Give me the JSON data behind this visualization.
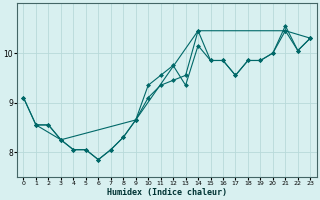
{
  "xlabel": "Humidex (Indice chaleur)",
  "bg_color": "#d8f0f0",
  "grid_color": "#b8dada",
  "line_color": "#006868",
  "markersize": 2.5,
  "linewidth": 0.8,
  "series1_x": [
    0,
    1,
    2,
    3,
    4,
    5,
    6,
    7,
    8,
    9,
    10,
    11,
    12,
    13,
    14,
    15,
    16,
    17,
    18,
    19,
    20,
    21,
    22,
    23
  ],
  "series1_y": [
    9.1,
    8.55,
    8.55,
    8.25,
    8.05,
    8.05,
    7.85,
    8.05,
    8.3,
    8.65,
    9.35,
    9.55,
    9.75,
    9.35,
    10.15,
    9.85,
    9.85,
    9.55,
    9.85,
    9.85,
    10.0,
    10.55,
    10.05,
    10.3
  ],
  "series2_x": [
    0,
    1,
    2,
    3,
    4,
    5,
    6,
    7,
    8,
    9,
    10,
    11,
    12,
    13,
    14,
    15,
    16,
    17,
    18,
    19,
    20,
    21,
    22,
    23
  ],
  "series2_y": [
    9.1,
    8.55,
    8.55,
    8.25,
    8.05,
    8.05,
    7.85,
    8.05,
    8.3,
    8.65,
    9.1,
    9.35,
    9.45,
    9.55,
    10.45,
    9.85,
    9.85,
    9.55,
    9.85,
    9.85,
    10.0,
    10.45,
    10.05,
    10.3
  ],
  "series3_x": [
    1,
    3,
    9,
    14,
    21,
    23
  ],
  "series3_y": [
    8.55,
    8.25,
    8.65,
    10.45,
    10.45,
    10.3
  ],
  "xlim": [
    -0.5,
    23.5
  ],
  "ylim": [
    7.5,
    11.0
  ],
  "yticks": [
    8,
    9,
    10
  ],
  "xticks": [
    0,
    1,
    2,
    3,
    4,
    5,
    6,
    7,
    8,
    9,
    10,
    11,
    12,
    13,
    14,
    15,
    16,
    17,
    18,
    19,
    20,
    21,
    22,
    23
  ]
}
